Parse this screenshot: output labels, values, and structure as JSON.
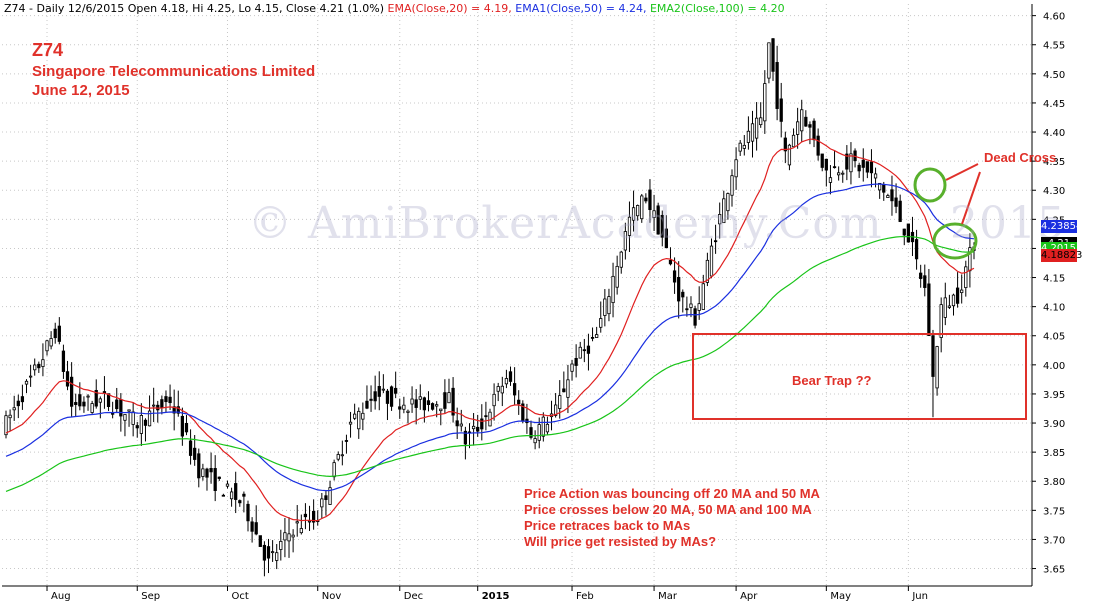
{
  "header": {
    "prefix": "Z74 - Daily 12/6/2015 Open 4.18, Hi 4.25, Lo 4.15, Close 4.21 (1.0%)",
    "ema20_text": "EMA(Close,20) = 4.19,",
    "ema50_text": "EMA1(Close,50) = 4.24,",
    "ema100_text": "EMA2(Close,100) = 4.20"
  },
  "title": {
    "symbol": "Z74",
    "company": "Singapore Telecommunications Limited",
    "date": "June 12, 2015"
  },
  "watermark": {
    "text": "© AmiBrokerAcademy.Com",
    "year": "2015"
  },
  "annotations": {
    "dead_cross": "Dead Cross",
    "bear_trap": "Bear Trap ??",
    "notes": [
      "Price Action was bouncing off 20 MA and 50 MA",
      "Price crosses below 20 MA, 50 MA and 100 MA",
      "Price retraces back to MAs",
      "Will price get resisted by MAs?"
    ]
  },
  "price_tags": [
    {
      "label": "4.23854",
      "value": 4.23854,
      "bg": "#1a2fe0",
      "fg": "#ffffff"
    },
    {
      "label": "4.21",
      "value": 4.21,
      "bg": "#000000",
      "fg": "#ffffff"
    },
    {
      "label": "4.20155",
      "value": 4.20155,
      "bg": "#19c419",
      "fg": "#ffffff"
    },
    {
      "label": "4.18823",
      "value": 4.18823,
      "bg": "#e02020",
      "fg": "#000000"
    }
  ],
  "colors": {
    "ema20": "#e02020",
    "ema50": "#1a2fe0",
    "ema100": "#19c419",
    "candle": "#000000",
    "annotation": "#e0312a"
  },
  "chart_data": {
    "type": "candlestick",
    "x_ticks": [
      "Aug",
      "Sep",
      "Oct",
      "Nov",
      "Dec",
      "2015",
      "Feb",
      "Mar",
      "Apr",
      "May",
      "Jun"
    ],
    "y_ticks": [
      3.65,
      3.7,
      3.75,
      3.8,
      3.85,
      3.9,
      3.95,
      4.0,
      4.05,
      4.1,
      4.15,
      4.2,
      4.25,
      4.3,
      4.35,
      4.4,
      4.45,
      4.5,
      4.55,
      4.6
    ],
    "ylim": [
      3.62,
      4.62
    ],
    "close_keypoints": [
      [
        0,
        3.9
      ],
      [
        8,
        4.0
      ],
      [
        12,
        4.06
      ],
      [
        16,
        3.93
      ],
      [
        24,
        3.94
      ],
      [
        32,
        3.9
      ],
      [
        40,
        3.94
      ],
      [
        47,
        3.82
      ],
      [
        58,
        3.76
      ],
      [
        64,
        3.66
      ],
      [
        70,
        3.72
      ],
      [
        76,
        3.74
      ],
      [
        84,
        3.9
      ],
      [
        90,
        3.95
      ],
      [
        100,
        3.93
      ],
      [
        108,
        3.94
      ],
      [
        112,
        3.87
      ],
      [
        116,
        3.9
      ],
      [
        122,
        3.98
      ],
      [
        128,
        3.88
      ],
      [
        134,
        3.92
      ],
      [
        138,
        4.0
      ],
      [
        144,
        4.05
      ],
      [
        148,
        4.15
      ],
      [
        152,
        4.25
      ],
      [
        156,
        4.29
      ],
      [
        160,
        4.22
      ],
      [
        164,
        4.12
      ],
      [
        168,
        4.08
      ],
      [
        172,
        4.2
      ],
      [
        178,
        4.36
      ],
      [
        184,
        4.42
      ],
      [
        186,
        4.55
      ],
      [
        190,
        4.36
      ],
      [
        194,
        4.44
      ],
      [
        200,
        4.33
      ],
      [
        206,
        4.35
      ],
      [
        212,
        4.32
      ],
      [
        216,
        4.28
      ],
      [
        220,
        4.22
      ],
      [
        224,
        4.13
      ],
      [
        226,
        3.98
      ],
      [
        228,
        4.1
      ],
      [
        232,
        4.12
      ],
      [
        236,
        4.21
      ]
    ],
    "ema_periods": [
      20,
      50,
      100
    ],
    "ema_start": [
      {
        "period": 20,
        "value": 3.88
      },
      {
        "period": 50,
        "value": 3.84
      },
      {
        "period": 100,
        "value": 3.78
      }
    ]
  }
}
